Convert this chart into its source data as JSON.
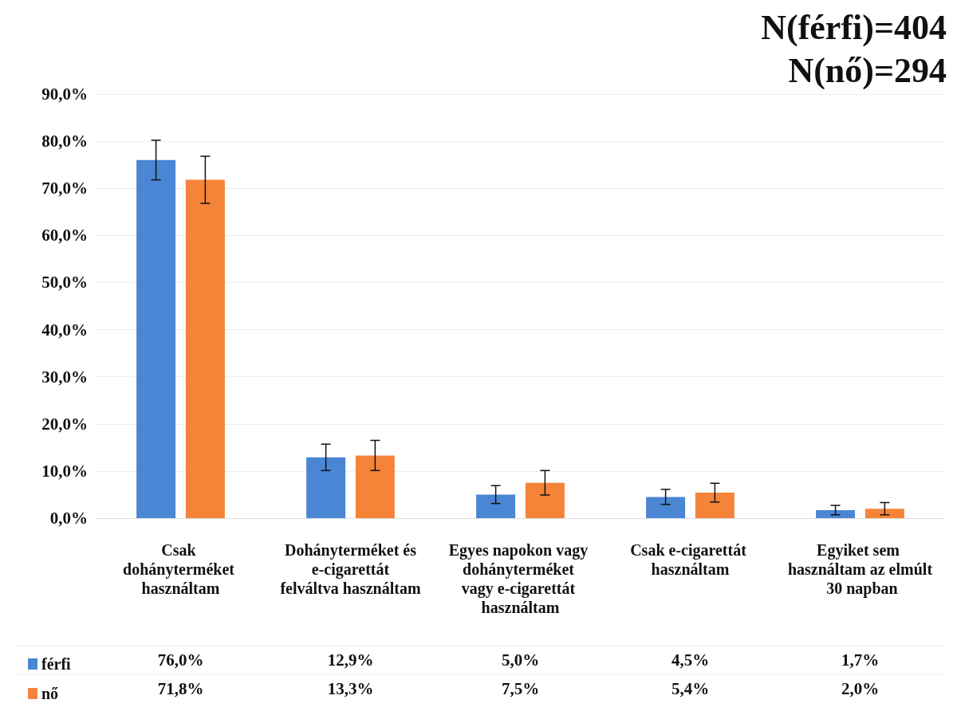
{
  "chart_data": {
    "type": "bar",
    "categories": [
      "Csak dohányterméket használtam",
      "Dohányterméket és e-cigarettát felváltva használtam",
      "Egyes napokon vagy dohányterméket vagy e-cigarettát használtam",
      "Csak e-cigarettát használtam",
      "Egyiket sem használtam az elmúlt 30 napban"
    ],
    "series": [
      {
        "name": "férfi",
        "color": "#4a86d4",
        "values": [
          76.0,
          12.9,
          5.0,
          4.5,
          1.7
        ],
        "errors": [
          4.2,
          2.8,
          1.9,
          1.6,
          1.0
        ],
        "value_labels": [
          "76,0%",
          "12,9%",
          "5,0%",
          "4,5%",
          "1,7%"
        ]
      },
      {
        "name": "nő",
        "color": "#f58439",
        "values": [
          71.8,
          13.3,
          7.5,
          5.4,
          2.0
        ],
        "errors": [
          5.0,
          3.2,
          2.6,
          2.0,
          1.3
        ],
        "value_labels": [
          "71,8%",
          "13,3%",
          "7,5%",
          "5,4%",
          "2,0%"
        ]
      }
    ],
    "ylim": [
      0,
      90
    ],
    "yticks": [
      {
        "value": 0,
        "label": "0,0%"
      },
      {
        "value": 10,
        "label": "10,0%"
      },
      {
        "value": 20,
        "label": "20,0%"
      },
      {
        "value": 30,
        "label": "30,0%"
      },
      {
        "value": 40,
        "label": "40,0%"
      },
      {
        "value": 50,
        "label": "50,0%"
      },
      {
        "value": 60,
        "label": "60,0%"
      },
      {
        "value": 70,
        "label": "70,0%"
      },
      {
        "value": 80,
        "label": "80,0%"
      },
      {
        "value": 90,
        "label": "90,0%"
      }
    ],
    "annotations": [
      "N(férfi)=404",
      "N(nő)=294"
    ],
    "grid": "y",
    "legend": "bottom"
  }
}
